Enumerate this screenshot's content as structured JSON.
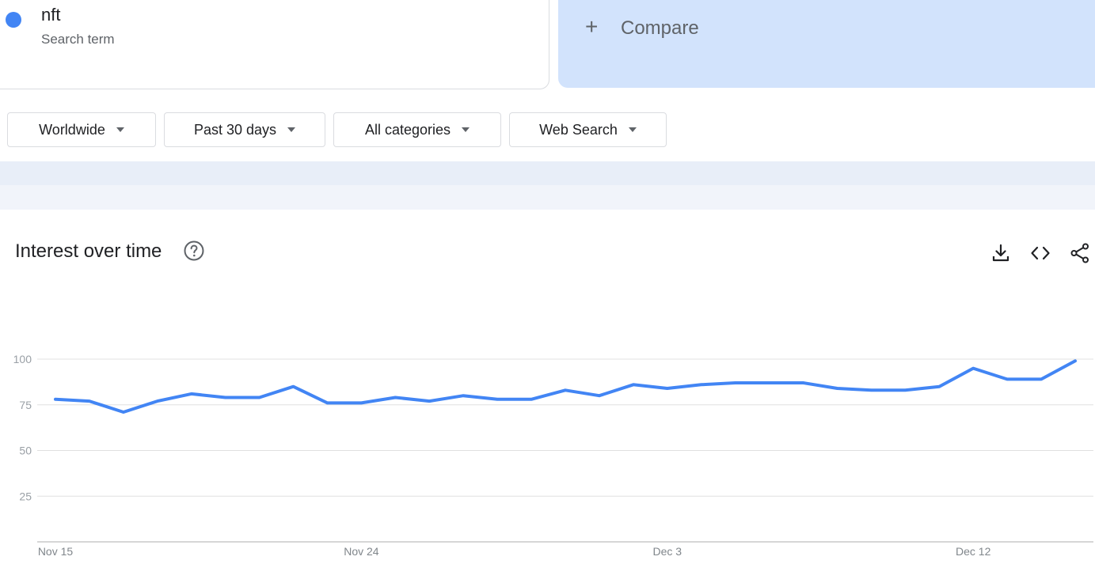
{
  "search_term": {
    "name": "nft",
    "subtitle": "Search term",
    "color": "#4285f4"
  },
  "compare": {
    "label": "Compare"
  },
  "filters": [
    {
      "label": "Worldwide"
    },
    {
      "label": "Past 30 days"
    },
    {
      "label": "All categories"
    },
    {
      "label": "Web Search"
    }
  ],
  "chart_card": {
    "title": "Interest over time",
    "icons": [
      "help-icon",
      "download-icon",
      "embed-icon",
      "share-icon"
    ]
  },
  "chart_data": {
    "type": "line",
    "title": "Interest over time",
    "xlabel": "",
    "ylabel": "",
    "ylim": [
      0,
      100
    ],
    "yticks": [
      25,
      50,
      75,
      100
    ],
    "xtick_labels": [
      "Nov 15",
      "Nov 24",
      "Dec 3",
      "Dec 12"
    ],
    "xtick_index": [
      0,
      9,
      18,
      27
    ],
    "grid": true,
    "series": [
      {
        "color": "#4285f4",
        "values": [
          78,
          77,
          71,
          77,
          81,
          79,
          79,
          85,
          76,
          76,
          79,
          77,
          80,
          78,
          78,
          83,
          80,
          86,
          84,
          86,
          87,
          87,
          87,
          84,
          83,
          83,
          85,
          95,
          89,
          89,
          99
        ]
      }
    ]
  }
}
